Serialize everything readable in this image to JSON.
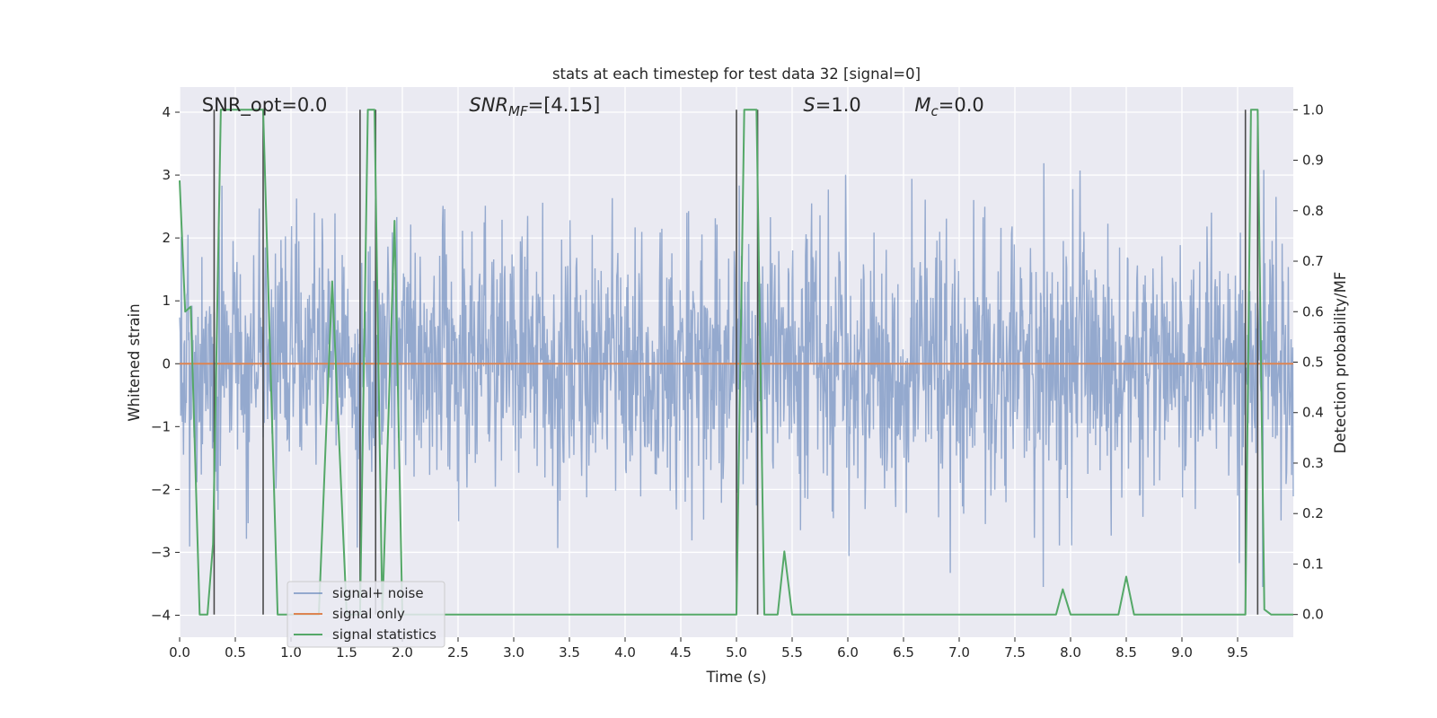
{
  "chart_data": {
    "type": "line",
    "title": "stats at each timestep for test data 32 [signal=0]",
    "xlabel": "Time (s)",
    "ylabel": "Whitened strain",
    "ylabel_right": "Detection probability/MF",
    "xlim": [
      0.0,
      10.0
    ],
    "ylim": [
      -4.35,
      4.4
    ],
    "ylim_right": [
      -0.045,
      1.045
    ],
    "x_ticks": [
      0.0,
      0.5,
      1.0,
      1.5,
      2.0,
      2.5,
      3.0,
      3.5,
      4.0,
      4.5,
      5.0,
      5.5,
      6.0,
      6.5,
      7.0,
      7.5,
      8.0,
      8.5,
      9.0,
      9.5
    ],
    "x_tick_labels": [
      "0.0",
      "0.5",
      "1.0",
      "1.5",
      "2.0",
      "2.5",
      "3.0",
      "3.5",
      "4.0",
      "4.5",
      "5.0",
      "5.5",
      "6.0",
      "6.5",
      "7.0",
      "7.5",
      "8.0",
      "8.5",
      "9.0",
      "9.5"
    ],
    "y_ticks": [
      -4,
      -3,
      -2,
      -1,
      0,
      1,
      2,
      3,
      4
    ],
    "y_tick_labels": [
      "−4",
      "−3",
      "−2",
      "−1",
      "0",
      "1",
      "2",
      "3",
      "4"
    ],
    "y_right_ticks": [
      0.0,
      0.1,
      0.2,
      0.3,
      0.4,
      0.5,
      0.6,
      0.7,
      0.8,
      0.9,
      1.0
    ],
    "y_right_tick_labels": [
      "0.0",
      "0.1",
      "0.2",
      "0.3",
      "0.4",
      "0.5",
      "0.6",
      "0.7",
      "0.8",
      "0.9",
      "1.0"
    ],
    "grid": true,
    "legend_position": "lower-left",
    "annotations": [
      {
        "name": "snr-opt",
        "prefix": "SNR_opt",
        "sub": "",
        "value": "=0.0",
        "x": 0.2
      },
      {
        "name": "snr-mf",
        "prefix": "SNR",
        "sub": "MF",
        "value": "=[4.15]",
        "x": 2.6
      },
      {
        "name": "s",
        "prefix": "S",
        "sub": "",
        "value": "=1.0",
        "x": 5.6
      },
      {
        "name": "mc",
        "prefix": "M",
        "sub": "c",
        "value": "=0.0",
        "x": 6.6
      }
    ],
    "series": [
      {
        "name": "signal+ noise",
        "color": "#4c72b0",
        "opacity": 0.55,
        "noise": {
          "axis": "left",
          "sample_rate_hz": 200,
          "std": 1.05,
          "max_abs": 3.55
        }
      },
      {
        "name": "signal only",
        "color": "#dd8452",
        "axis": "left",
        "x": [
          0.0,
          10.0
        ],
        "y": [
          0.0,
          0.0
        ]
      },
      {
        "name": "signal statistics",
        "color": "#55a868",
        "axis": "right",
        "x": [
          0.0,
          0.05,
          0.1,
          0.18,
          0.25,
          0.3,
          0.37,
          0.75,
          0.88,
          1.25,
          1.37,
          1.5,
          1.62,
          1.69,
          1.75,
          1.82,
          1.93,
          2.0,
          5.0,
          5.07,
          5.18,
          5.25,
          5.37,
          5.43,
          5.5,
          7.87,
          7.93,
          8.0,
          8.43,
          8.5,
          8.57,
          9.57,
          9.62,
          9.68,
          9.74,
          9.8,
          10.0
        ],
        "y": [
          0.86,
          0.6,
          0.61,
          0.0,
          0.0,
          0.14,
          1.0,
          1.0,
          0.0,
          0.0,
          0.66,
          0.0,
          0.0,
          1.0,
          1.0,
          0.0,
          0.78,
          0.0,
          0.0,
          1.0,
          1.0,
          0.0,
          0.0,
          0.125,
          0.0,
          0.0,
          0.05,
          0.0,
          0.0,
          0.075,
          0.0,
          0.0,
          1.0,
          1.0,
          0.01,
          0.0,
          0.0
        ]
      }
    ],
    "vlines": [
      0.31,
      0.75,
      1.62,
      1.76,
      5.0,
      5.19,
      9.57,
      9.68
    ],
    "vline_color": "#4a4a4a"
  }
}
